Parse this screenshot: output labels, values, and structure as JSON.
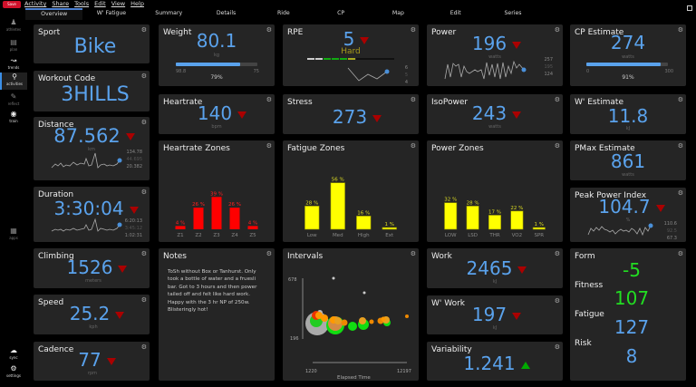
{
  "app": {
    "save_label": "Save"
  },
  "menu": [
    "Activity",
    "Share",
    "Tools",
    "Edit",
    "View",
    "Help"
  ],
  "tabs": [
    {
      "label": "Overview",
      "active": true
    },
    {
      "label": "W' Fatigue"
    },
    {
      "label": "Summary"
    },
    {
      "label": "Details"
    },
    {
      "label": "Ride"
    },
    {
      "label": "CP"
    },
    {
      "label": "Map"
    },
    {
      "label": "Edit"
    },
    {
      "label": "Series"
    }
  ],
  "sidebar": {
    "items": [
      {
        "label": "athletes",
        "icon": "athletes-icon"
      },
      {
        "label": "plan",
        "icon": "plan-icon"
      },
      {
        "label": "trends",
        "icon": "trends-icon"
      },
      {
        "label": "activities",
        "icon": "activities-icon",
        "active": true
      },
      {
        "label": "reflect",
        "icon": "reflect-icon"
      },
      {
        "label": "train",
        "icon": "train-icon"
      },
      {
        "label": "apps",
        "icon": "apps-icon"
      },
      {
        "label": "sync",
        "icon": "sync-icon"
      },
      {
        "label": "settings",
        "icon": "settings-icon"
      }
    ]
  },
  "tiles": {
    "sport": {
      "title": "Sport",
      "value": "Bike"
    },
    "workout_code": {
      "title": "Workout Code",
      "value": "3HILLS"
    },
    "distance": {
      "title": "Distance",
      "value": "87.562",
      "unit": "km",
      "max": "134.78",
      "avg": "44.695",
      "min": "20.382",
      "trend": "down"
    },
    "duration": {
      "title": "Duration",
      "value": "3:30:04",
      "max": "6:20:13",
      "avg": "3:45:12",
      "min": "1:02:31",
      "trend": "down"
    },
    "climbing": {
      "title": "Climbing",
      "value": "1526",
      "unit": "meters",
      "trend": "down"
    },
    "speed": {
      "title": "Speed",
      "value": "25.2",
      "unit": "kph",
      "trend": "down"
    },
    "cadence": {
      "title": "Cadence",
      "value": "77",
      "unit": "rpm",
      "trend": "down"
    },
    "weight": {
      "title": "Weight",
      "value": "80.1",
      "unit": "kg",
      "min_label": "98.8",
      "max_label": "75",
      "percent_label": "79%",
      "fill": 0.79
    },
    "rpe": {
      "title": "RPE",
      "value": "5",
      "label": "Hard",
      "max": "6",
      "avg": "5",
      "min": "4",
      "trend": "down"
    },
    "power": {
      "title": "Power",
      "value": "196",
      "unit": "watts",
      "max": "257",
      "avg": "195",
      "min": "124",
      "trend": "down"
    },
    "cp_estimate": {
      "title": "CP Estimate",
      "value": "274",
      "unit": "watts",
      "min_label": "0",
      "max_label": "300",
      "percent_label": "91%",
      "fill": 0.91
    },
    "heartrate": {
      "title": "Heartrate",
      "value": "140",
      "unit": "bpm",
      "trend": "down"
    },
    "stress": {
      "title": "Stress",
      "value": "273",
      "trend": "down"
    },
    "isopower": {
      "title": "IsoPower",
      "value": "243",
      "unit": "watts",
      "trend": "down"
    },
    "w_estimate": {
      "title": "W' Estimate",
      "value": "11.8",
      "unit": "kJ"
    },
    "pmax_estimate": {
      "title": "PMax Estimate",
      "value": "861",
      "unit": "watts"
    },
    "peak_power_index": {
      "title": "Peak Power Index",
      "value": "104.7",
      "unit": "%",
      "max": "110.6",
      "avg": "92.5",
      "min": "67.3",
      "trend": "down"
    },
    "notes": {
      "title": "Notes",
      "text": "ToSh without Box or Tanhurst. Only took a bottle of water and a fruesli bar. Got to 3 hours and then power tailed off and felt like hard work. Happy with the 3 hr NP of 250w. Blisteringly hot!"
    },
    "work": {
      "title": "Work",
      "value": "2465",
      "unit": "kJ",
      "trend": "down"
    },
    "w_work": {
      "title": "W' Work",
      "value": "197",
      "unit": "kJ",
      "trend": "down"
    },
    "variability": {
      "title": "Variability",
      "value": "1.241",
      "trend": "up"
    },
    "form": {
      "title": "Form",
      "form_value": "-5",
      "fitness_label": "Fitness",
      "fitness_value": "107",
      "fatigue_label": "Fatigue",
      "fatigue_value": "127",
      "risk_label": "Risk",
      "risk_value": "8"
    }
  },
  "zones": {
    "heartrate": {
      "title": "Heartrate Zones",
      "color": "#ff0000",
      "categories": [
        "Z1",
        "Z2",
        "Z3",
        "Z4",
        "Z5"
      ],
      "values": [
        4,
        26,
        39,
        26,
        4
      ]
    },
    "fatigue": {
      "title": "Fatigue Zones",
      "color": "#ffff00",
      "categories": [
        "Low",
        "Med",
        "High",
        "Ext"
      ],
      "values": [
        28,
        56,
        16,
        1
      ]
    },
    "power": {
      "title": "Power Zones",
      "color": "#ffff00",
      "categories": [
        "LOW",
        "LSD",
        "THR",
        "VO2",
        "SPR"
      ],
      "values": [
        32,
        28,
        17,
        22,
        1
      ]
    }
  },
  "intervals": {
    "title": "Intervals",
    "xlabel": "Elapsed Time",
    "xmin": "1220",
    "xmax": "12197",
    "ymin": "196",
    "ymax": "678"
  },
  "colors": {
    "accent": "#5aa2ec",
    "down": "#aa0000",
    "up": "#00aa00",
    "tile": "#252525"
  }
}
